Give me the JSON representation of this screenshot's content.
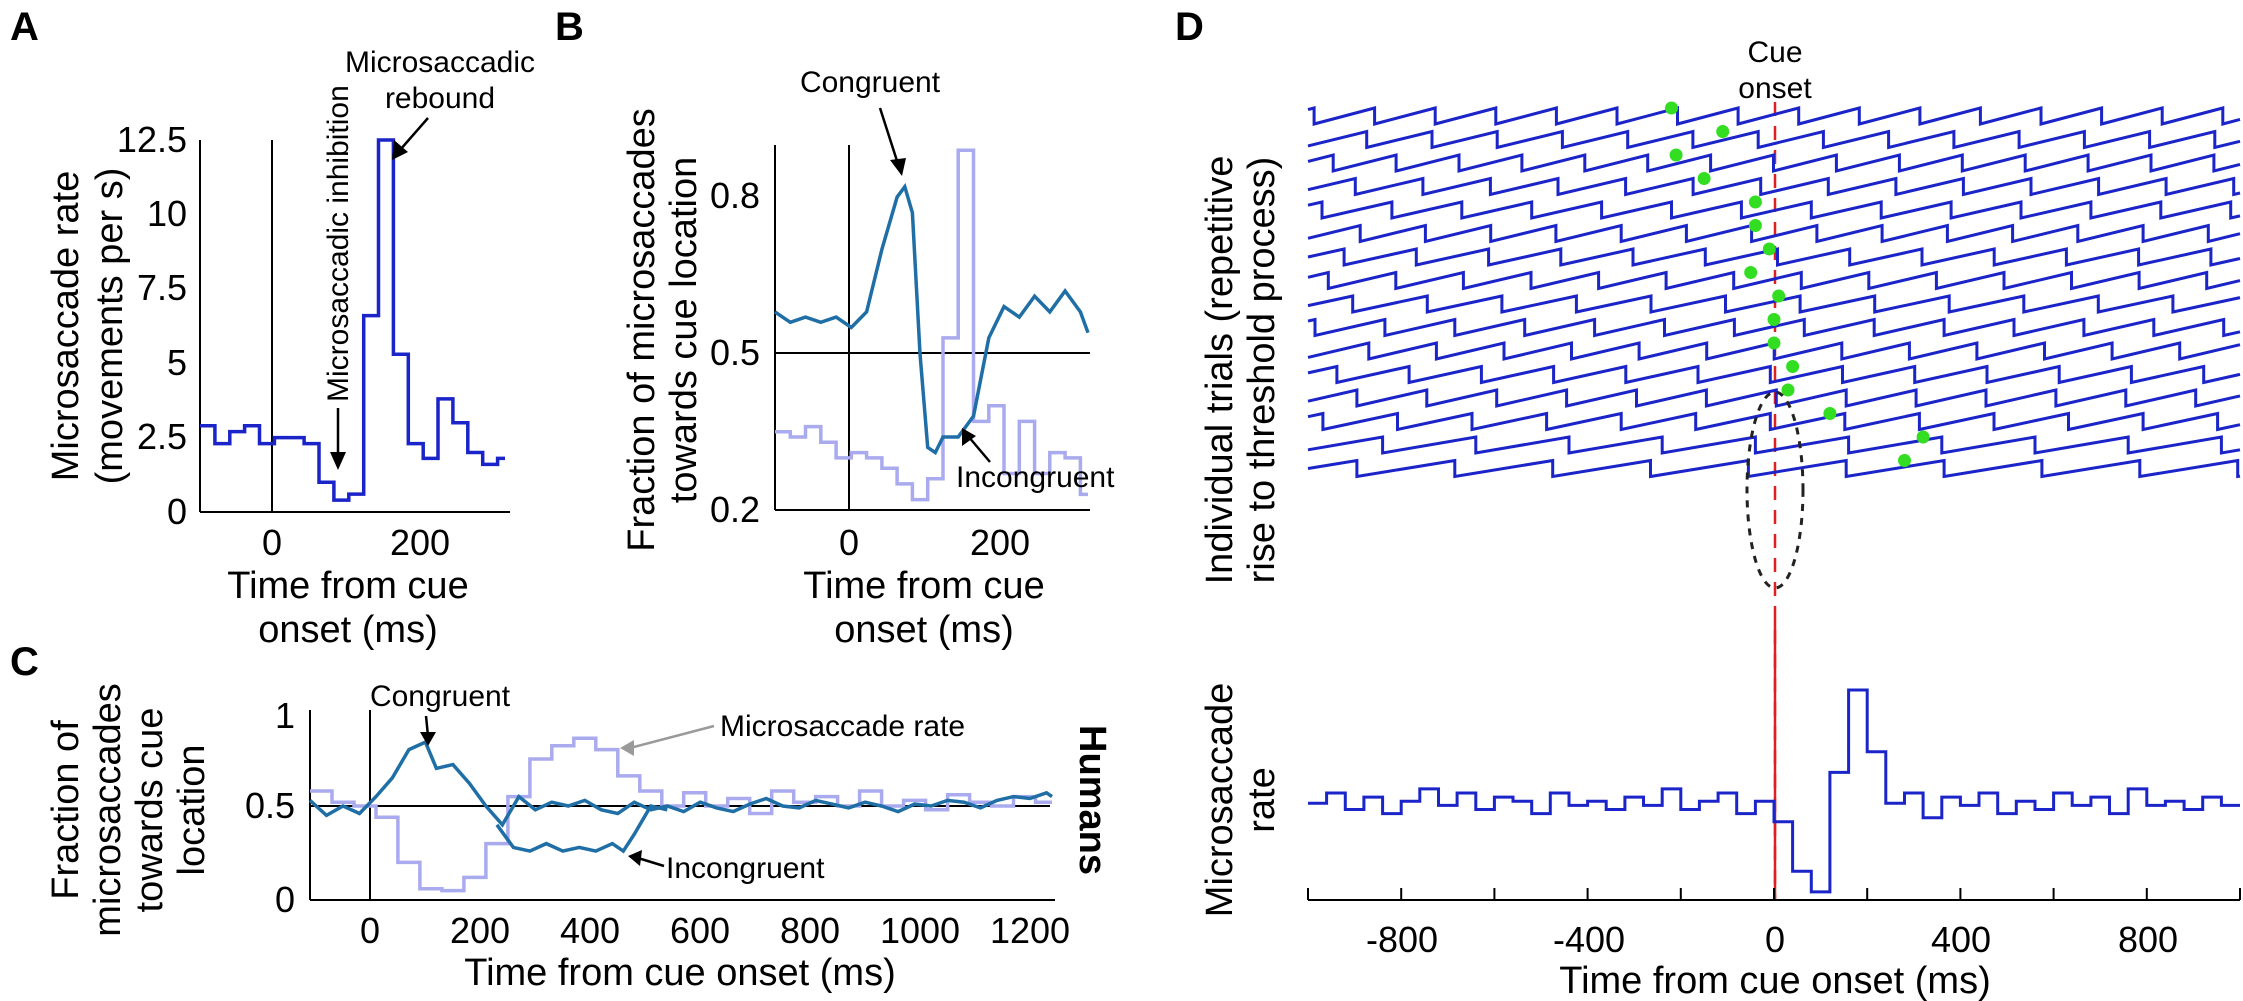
{
  "figure": {
    "colors": {
      "blue": "#1a24c8",
      "teal": "#1f6fa6",
      "lavender": "#aaaaee",
      "green": "#33dd22",
      "red": "#e02020",
      "gray": "#9a9a9a",
      "black": "#000000"
    }
  },
  "chart_data": [
    {
      "id": "A",
      "panel_label": "A",
      "type": "line",
      "step": true,
      "xlabel": "Time from cue onset (ms)",
      "ylabel": "Microsaccade rate (movements per s)",
      "xlim": [
        -100,
        310
      ],
      "ylim": [
        0,
        12.5
      ],
      "yticks": [
        "0",
        "2.5",
        "5",
        "7.5",
        "10",
        "12.5"
      ],
      "xticks": [
        "0",
        "200"
      ],
      "series": [
        {
          "name": "Microsaccade rate",
          "x": [
            -100,
            -80,
            -60,
            -40,
            -20,
            0,
            20,
            40,
            60,
            80,
            100,
            120,
            140,
            160,
            180,
            200,
            220,
            240,
            260,
            280,
            300
          ],
          "values": [
            2.9,
            2.3,
            2.7,
            2.9,
            2.3,
            2.5,
            2.5,
            2.3,
            1.0,
            0.4,
            0.6,
            6.6,
            12.5,
            5.3,
            2.3,
            1.8,
            3.8,
            3.0,
            2.0,
            1.6,
            1.8
          ]
        }
      ],
      "annotations": [
        {
          "text": "Microsaccadic inhibition",
          "x": 85,
          "y": 0.5
        },
        {
          "text": "Microsaccadic rebound",
          "x": 160,
          "y": 12.5
        }
      ]
    },
    {
      "id": "B",
      "panel_label": "B",
      "type": "line",
      "xlabel": "Time from cue onset (ms)",
      "ylabel": "Fraction of microsaccades towards cue location",
      "xlim": [
        -100,
        310
      ],
      "ylim": [
        0.2,
        0.9
      ],
      "yticks": [
        "0.2",
        "0.5",
        "0.8"
      ],
      "xticks": [
        "0",
        "200"
      ],
      "reference_line": 0.5,
      "series": [
        {
          "name": "Congruent",
          "x": [
            -100,
            -80,
            -60,
            -40,
            -20,
            0,
            20,
            40,
            60,
            70,
            80,
            90,
            100,
            110,
            120,
            140,
            160,
            180,
            200,
            220,
            240,
            260,
            280,
            300,
            310
          ],
          "values": [
            0.58,
            0.56,
            0.57,
            0.56,
            0.57,
            0.55,
            0.58,
            0.7,
            0.8,
            0.82,
            0.77,
            0.5,
            0.32,
            0.31,
            0.34,
            0.34,
            0.38,
            0.53,
            0.59,
            0.57,
            0.61,
            0.58,
            0.62,
            0.58,
            0.54
          ]
        },
        {
          "name": "Incongruent",
          "step": true,
          "x": [
            -100,
            -80,
            -60,
            -40,
            -20,
            0,
            20,
            40,
            60,
            80,
            100,
            120,
            140,
            160,
            180,
            200,
            220,
            240,
            260,
            280,
            300
          ],
          "values": [
            0.35,
            0.34,
            0.36,
            0.33,
            0.3,
            0.31,
            0.3,
            0.28,
            0.25,
            0.22,
            0.26,
            0.53,
            0.89,
            0.37,
            0.4,
            0.27,
            0.37,
            0.27,
            0.31,
            0.3,
            0.23
          ]
        }
      ],
      "annotations": [
        {
          "text": "Congruent",
          "x": 70,
          "y": 0.82
        },
        {
          "text": "Incongruent",
          "x": 150,
          "y": 0.31
        }
      ]
    },
    {
      "id": "C",
      "panel_label": "C",
      "type": "line",
      "xlabel": "Time from cue onset (ms)",
      "ylabel": "Fraction of microsaccades towards cue location",
      "xlim": [
        -100,
        1250
      ],
      "ylim": [
        0,
        1
      ],
      "yticks": [
        "0",
        "0.5",
        "1"
      ],
      "xticks": [
        "0",
        "200",
        "400",
        "600",
        "800",
        "1000",
        "1200"
      ],
      "reference_line": 0.5,
      "side_label": "Humans",
      "series": [
        {
          "name": "Congruent",
          "x": [
            -100,
            -70,
            -40,
            -10,
            20,
            50,
            80,
            110,
            130,
            160,
            190,
            220,
            250,
            280,
            310,
            340,
            370,
            400,
            430,
            460,
            490,
            520,
            550,
            580,
            610,
            640,
            670,
            700,
            730,
            760,
            790,
            820,
            850,
            880,
            910,
            940,
            970,
            1000,
            1030,
            1060,
            1090,
            1120,
            1150,
            1180,
            1210,
            1240,
            1250
          ],
          "values": [
            0.53,
            0.45,
            0.5,
            0.46,
            0.55,
            0.65,
            0.8,
            0.84,
            0.7,
            0.72,
            0.62,
            0.5,
            0.4,
            0.55,
            0.48,
            0.52,
            0.5,
            0.53,
            0.48,
            0.46,
            0.52,
            0.48,
            0.5,
            0.47,
            0.52,
            0.49,
            0.47,
            0.51,
            0.54,
            0.5,
            0.49,
            0.53,
            0.51,
            0.49,
            0.52,
            0.5,
            0.47,
            0.51,
            0.5,
            0.53,
            0.52,
            0.49,
            0.53,
            0.55,
            0.54,
            0.57,
            0.55
          ]
        },
        {
          "name": "Incongruent",
          "x": [
            240,
            270,
            300,
            330,
            360,
            390,
            420,
            450,
            470,
            490,
            520,
            550
          ],
          "values": [
            0.4,
            0.28,
            0.26,
            0.3,
            0.26,
            0.28,
            0.26,
            0.3,
            0.26,
            0.35,
            0.5,
            0.48
          ]
        },
        {
          "name": "Microsaccade rate",
          "step": true,
          "x": [
            -100,
            -60,
            -20,
            20,
            60,
            100,
            140,
            180,
            220,
            260,
            300,
            340,
            380,
            420,
            460,
            500,
            540,
            580,
            620,
            660,
            700,
            740,
            780,
            820,
            860,
            900,
            940,
            980,
            1020,
            1060,
            1100,
            1140,
            1180,
            1220
          ],
          "values": [
            0.58,
            0.52,
            0.5,
            0.44,
            0.2,
            0.06,
            0.05,
            0.12,
            0.3,
            0.55,
            0.75,
            0.82,
            0.86,
            0.8,
            0.66,
            0.58,
            0.5,
            0.57,
            0.5,
            0.54,
            0.46,
            0.58,
            0.52,
            0.55,
            0.5,
            0.58,
            0.5,
            0.53,
            0.48,
            0.56,
            0.52,
            0.5,
            0.55,
            0.52
          ]
        }
      ],
      "annotations": [
        {
          "text": "Congruent",
          "x": 110,
          "y": 0.84
        },
        {
          "text": "Microsaccade rate",
          "x": 450,
          "y": 0.86
        },
        {
          "text": "Incongruent",
          "x": 460,
          "y": 0.27
        }
      ]
    },
    {
      "id": "D",
      "panel_label": "D",
      "type": "line",
      "xlabel": "Time from cue onset (ms)",
      "ylabel_top": "Individual trials (repetitive rise to threshold process)",
      "ylabel_bottom": "Microsaccade rate",
      "cue_label": "Cue onset",
      "xlim": [
        -1000,
        1000
      ],
      "xticks": [
        "-800",
        "-400",
        "0",
        "400",
        "800"
      ],
      "trials": [
        {
          "phase": 0.9,
          "period": 130,
          "marker_x": -220
        },
        {
          "phase": 0.1,
          "period": 140,
          "marker_x": -110
        },
        {
          "phase": 0.6,
          "period": 135,
          "marker_x": -210
        },
        {
          "phase": 0.3,
          "period": 145,
          "marker_x": -150
        },
        {
          "phase": 0.8,
          "period": 150,
          "marker_x": -40
        },
        {
          "phase": 0.2,
          "period": 140,
          "marker_x": -40
        },
        {
          "phase": 0.5,
          "period": 155,
          "marker_x": -10
        },
        {
          "phase": 0.7,
          "period": 145,
          "marker_x": -50
        },
        {
          "phase": 0.4,
          "period": 160,
          "marker_x": 10
        },
        {
          "phase": 0.9,
          "period": 150,
          "marker_x": 0
        },
        {
          "phase": 0.1,
          "period": 145,
          "marker_x": 0
        },
        {
          "phase": 0.6,
          "period": 155,
          "marker_x": 40
        },
        {
          "phase": 0.3,
          "period": 150,
          "marker_x": 30
        },
        {
          "phase": 0.8,
          "period": 160,
          "marker_x": 120
        },
        {
          "phase": 0.2,
          "period": 200,
          "marker_x": 320
        },
        {
          "phase": 0.5,
          "period": 210,
          "marker_x": 280
        }
      ],
      "rate": {
        "step": true,
        "x": [
          -1000,
          -960,
          -920,
          -880,
          -840,
          -800,
          -760,
          -720,
          -680,
          -640,
          -600,
          -560,
          -520,
          -480,
          -440,
          -400,
          -360,
          -320,
          -280,
          -240,
          -200,
          -160,
          -120,
          -80,
          -40,
          0,
          40,
          80,
          120,
          160,
          200,
          240,
          280,
          320,
          360,
          400,
          440,
          480,
          520,
          560,
          600,
          640,
          680,
          720,
          760,
          800,
          840,
          880,
          920,
          960
        ],
        "values": [
          0.45,
          0.5,
          0.42,
          0.48,
          0.4,
          0.46,
          0.52,
          0.44,
          0.5,
          0.42,
          0.48,
          0.46,
          0.4,
          0.5,
          0.44,
          0.46,
          0.42,
          0.48,
          0.44,
          0.52,
          0.42,
          0.46,
          0.5,
          0.4,
          0.46,
          0.36,
          0.12,
          0.02,
          0.6,
          1.0,
          0.7,
          0.45,
          0.5,
          0.38,
          0.48,
          0.44,
          0.5,
          0.4,
          0.46,
          0.42,
          0.5,
          0.44,
          0.48,
          0.4,
          0.52,
          0.44,
          0.46,
          0.42,
          0.48,
          0.44
        ]
      }
    }
  ]
}
